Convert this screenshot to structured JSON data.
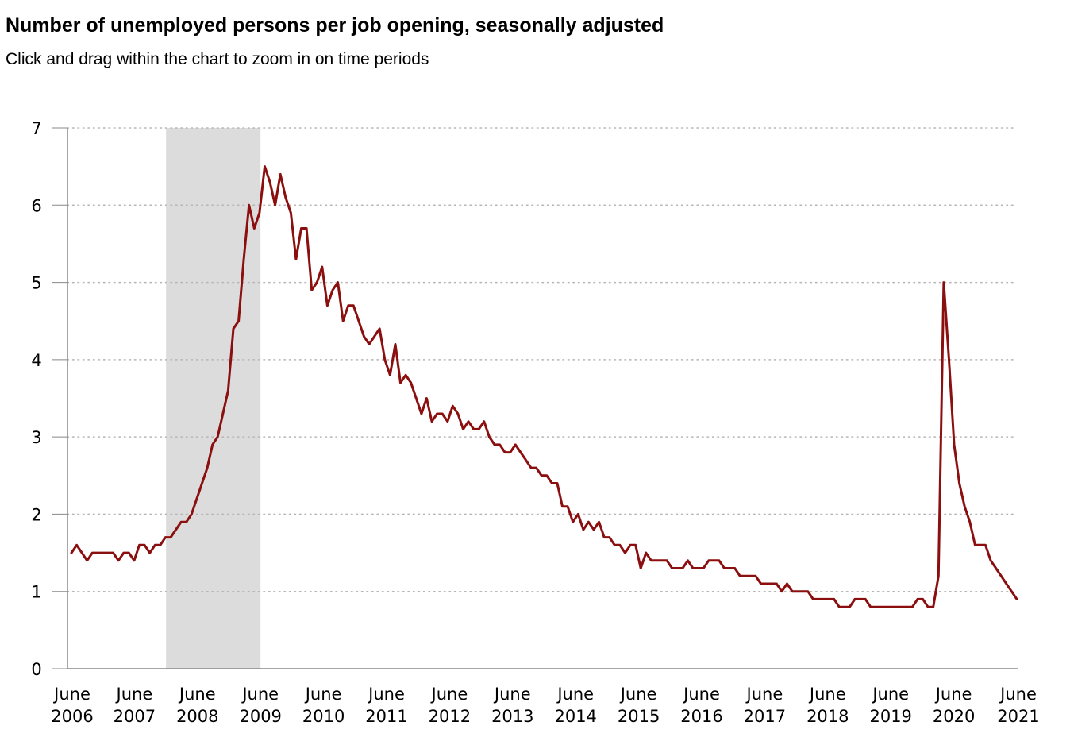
{
  "header": {
    "title": "Number of unemployed persons per job opening, seasonally adjusted",
    "subtitle": "Click and drag within the chart to zoom in on time periods"
  },
  "colors": {
    "line": "#8b0f0f",
    "recession": "#dcdcdc",
    "grid": "#b5b5b5",
    "axis": "#888888"
  },
  "chart_data": {
    "type": "line",
    "title": "Number of unemployed persons per job opening, seasonally adjusted",
    "xlabel": "",
    "ylabel": "",
    "ylim": [
      0,
      7
    ],
    "yticks": [
      0,
      1,
      2,
      3,
      4,
      5,
      6,
      7
    ],
    "grid": true,
    "x_start": "2006-06",
    "x_end": "2021-06",
    "xticks": [
      {
        "month": 0,
        "line1": "June",
        "line2": "2006"
      },
      {
        "month": 12,
        "line1": "June",
        "line2": "2007"
      },
      {
        "month": 24,
        "line1": "June",
        "line2": "2008"
      },
      {
        "month": 36,
        "line1": "June",
        "line2": "2009"
      },
      {
        "month": 48,
        "line1": "June",
        "line2": "2010"
      },
      {
        "month": 60,
        "line1": "June",
        "line2": "2011"
      },
      {
        "month": 72,
        "line1": "June",
        "line2": "2012"
      },
      {
        "month": 84,
        "line1": "June",
        "line2": "2013"
      },
      {
        "month": 96,
        "line1": "June",
        "line2": "2014"
      },
      {
        "month": 108,
        "line1": "June",
        "line2": "2015"
      },
      {
        "month": 120,
        "line1": "June",
        "line2": "2016"
      },
      {
        "month": 132,
        "line1": "June",
        "line2": "2017"
      },
      {
        "month": 144,
        "line1": "June",
        "line2": "2018"
      },
      {
        "month": 156,
        "line1": "June",
        "line2": "2019"
      },
      {
        "month": 168,
        "line1": "June",
        "line2": "2020"
      },
      {
        "month": 180,
        "line1": "June",
        "line2": "2021"
      }
    ],
    "recession": {
      "start_month": 18,
      "end_month": 36
    },
    "series": [
      {
        "name": "Unemployed persons per job opening",
        "values": [
          1.5,
          1.6,
          1.5,
          1.4,
          1.5,
          1.5,
          1.5,
          1.5,
          1.5,
          1.4,
          1.5,
          1.5,
          1.4,
          1.6,
          1.6,
          1.5,
          1.6,
          1.6,
          1.7,
          1.7,
          1.8,
          1.9,
          1.9,
          2.0,
          2.2,
          2.4,
          2.6,
          2.9,
          3.0,
          3.3,
          3.6,
          4.4,
          4.5,
          5.3,
          6.0,
          5.7,
          5.9,
          6.5,
          6.3,
          6.0,
          6.4,
          6.1,
          5.9,
          5.3,
          5.7,
          5.7,
          4.9,
          5.0,
          5.2,
          4.7,
          4.9,
          5.0,
          4.5,
          4.7,
          4.7,
          4.5,
          4.3,
          4.2,
          4.3,
          4.4,
          4.0,
          3.8,
          4.2,
          3.7,
          3.8,
          3.7,
          3.5,
          3.3,
          3.5,
          3.2,
          3.3,
          3.3,
          3.2,
          3.4,
          3.3,
          3.1,
          3.2,
          3.1,
          3.1,
          3.2,
          3.0,
          2.9,
          2.9,
          2.8,
          2.8,
          2.9,
          2.8,
          2.7,
          2.6,
          2.6,
          2.5,
          2.5,
          2.4,
          2.4,
          2.1,
          2.1,
          1.9,
          2.0,
          1.8,
          1.9,
          1.8,
          1.9,
          1.7,
          1.7,
          1.6,
          1.6,
          1.5,
          1.6,
          1.6,
          1.3,
          1.5,
          1.4,
          1.4,
          1.4,
          1.4,
          1.3,
          1.3,
          1.3,
          1.4,
          1.3,
          1.3,
          1.3,
          1.4,
          1.4,
          1.4,
          1.3,
          1.3,
          1.3,
          1.2,
          1.2,
          1.2,
          1.2,
          1.1,
          1.1,
          1.1,
          1.1,
          1.0,
          1.1,
          1.0,
          1.0,
          1.0,
          1.0,
          0.9,
          0.9,
          0.9,
          0.9,
          0.9,
          0.8,
          0.8,
          0.8,
          0.9,
          0.9,
          0.9,
          0.8,
          0.8,
          0.8,
          0.8,
          0.8,
          0.8,
          0.8,
          0.8,
          0.8,
          0.9,
          0.9,
          0.8,
          0.8,
          1.2,
          5.0,
          4.0,
          2.9,
          2.4,
          2.1,
          1.9,
          1.6,
          1.6,
          1.6,
          1.4,
          1.3,
          1.2,
          1.1,
          1.0,
          0.9
        ]
      }
    ]
  }
}
